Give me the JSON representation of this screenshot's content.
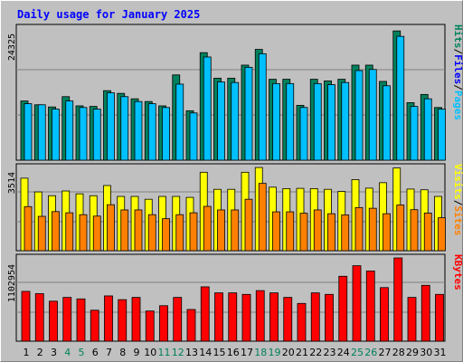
{
  "chart_data": {
    "type": "bar",
    "title": "Daily usage for January 2025",
    "categories": [
      "1",
      "2",
      "3",
      "4",
      "5",
      "6",
      "7",
      "8",
      "9",
      "10",
      "11",
      "12",
      "13",
      "14",
      "15",
      "16",
      "17",
      "18",
      "19",
      "20",
      "21",
      "22",
      "23",
      "24",
      "25",
      "26",
      "27",
      "28",
      "29",
      "30",
      "31"
    ],
    "weekend_days": [
      "4",
      "5",
      "11",
      "12",
      "18",
      "19",
      "25",
      "26"
    ],
    "colors": {
      "hits": "#00805c",
      "files": "#00c0ff",
      "pages": "#00e0ff",
      "visits": "#ffff00",
      "sites": "#ff8000",
      "kbytes": "#ff0000",
      "weekday_label": "#000000",
      "weekend_label": "#00805c",
      "title": "#0000ff"
    },
    "panels": [
      {
        "id": "hits-files",
        "ymax_label": "24325",
        "ylim": [
          0,
          24325
        ],
        "labels": [
          {
            "text": "Hits",
            "color": "#00805c"
          },
          {
            "text": "/",
            "color": "#000000"
          },
          {
            "text": "Files",
            "color": "#0000ff"
          },
          {
            "text": "/",
            "color": "#000000"
          },
          {
            "text": "Pages",
            "color": "#00c0ff"
          }
        ],
        "series": [
          {
            "name": "Hits",
            "color": "#00805c",
            "values": [
              10900,
              10200,
              9800,
              11700,
              10000,
              9900,
              12800,
              12300,
              11300,
              10800,
              10000,
              15700,
              9100,
              19800,
              15100,
              15100,
              17500,
              20400,
              14900,
              14900,
              10100,
              14900,
              14600,
              14900,
              17500,
              17500,
              14500,
              23800,
              10600,
              12100,
              9700
            ]
          },
          {
            "name": "Files",
            "color": "#00c0ff",
            "values": [
              10400,
              10200,
              9400,
              10900,
              9700,
              9400,
              12400,
              11700,
              10800,
              10400,
              9700,
              14000,
              8700,
              19000,
              14400,
              14300,
              17100,
              19600,
              14100,
              14100,
              9700,
              14100,
              13900,
              14300,
              16500,
              16700,
              13700,
              22800,
              9900,
              11300,
              9400
            ]
          }
        ]
      },
      {
        "id": "visits-sites",
        "ymax_label": "3514",
        "ylim": [
          0,
          3514
        ],
        "labels": [
          {
            "text": "Visits",
            "color": "#ffff00"
          },
          {
            "text": "/",
            "color": "#000000"
          },
          {
            "text": "Sites",
            "color": "#ff8000"
          }
        ],
        "series": [
          {
            "name": "Visits",
            "color": "#ffff00",
            "values": [
              3060,
              2480,
              2320,
              2520,
              2400,
              2320,
              2750,
              2290,
              2290,
              2170,
              2290,
              2290,
              2250,
              3310,
              2590,
              2590,
              3310,
              3510,
              2680,
              2620,
              2630,
              2620,
              2590,
              2500,
              3000,
              2640,
              2870,
              3490,
              2600,
              2570,
              2290
            ]
          },
          {
            "name": "Sites",
            "color": "#ff8000",
            "values": [
              1860,
              1450,
              1650,
              1600,
              1520,
              1460,
              1940,
              1720,
              1720,
              1520,
              1350,
              1520,
              1600,
              1870,
              1720,
              1720,
              2170,
              2840,
              1640,
              1640,
              1580,
              1720,
              1560,
              1510,
              1820,
              1790,
              1560,
              1930,
              1730,
              1590,
              1390
            ]
          }
        ]
      },
      {
        "id": "kbytes",
        "ymax_label": "1102954",
        "ylim": [
          0,
          1102954
        ],
        "labels": [
          {
            "text": "KBytes",
            "color": "#ff0000"
          }
        ],
        "series": [
          {
            "name": "KBytes",
            "color": "#ff0000",
            "values": [
              660000,
              630000,
              530000,
              580000,
              560000,
              410000,
              600000,
              550000,
              580000,
              400000,
              470000,
              580000,
              420000,
              720000,
              640000,
              640000,
              620000,
              670000,
              640000,
              580000,
              500000,
              640000,
              620000,
              860000,
              1000000,
              930000,
              710000,
              1102954,
              580000,
              740000,
              620000
            ]
          }
        ]
      }
    ]
  }
}
